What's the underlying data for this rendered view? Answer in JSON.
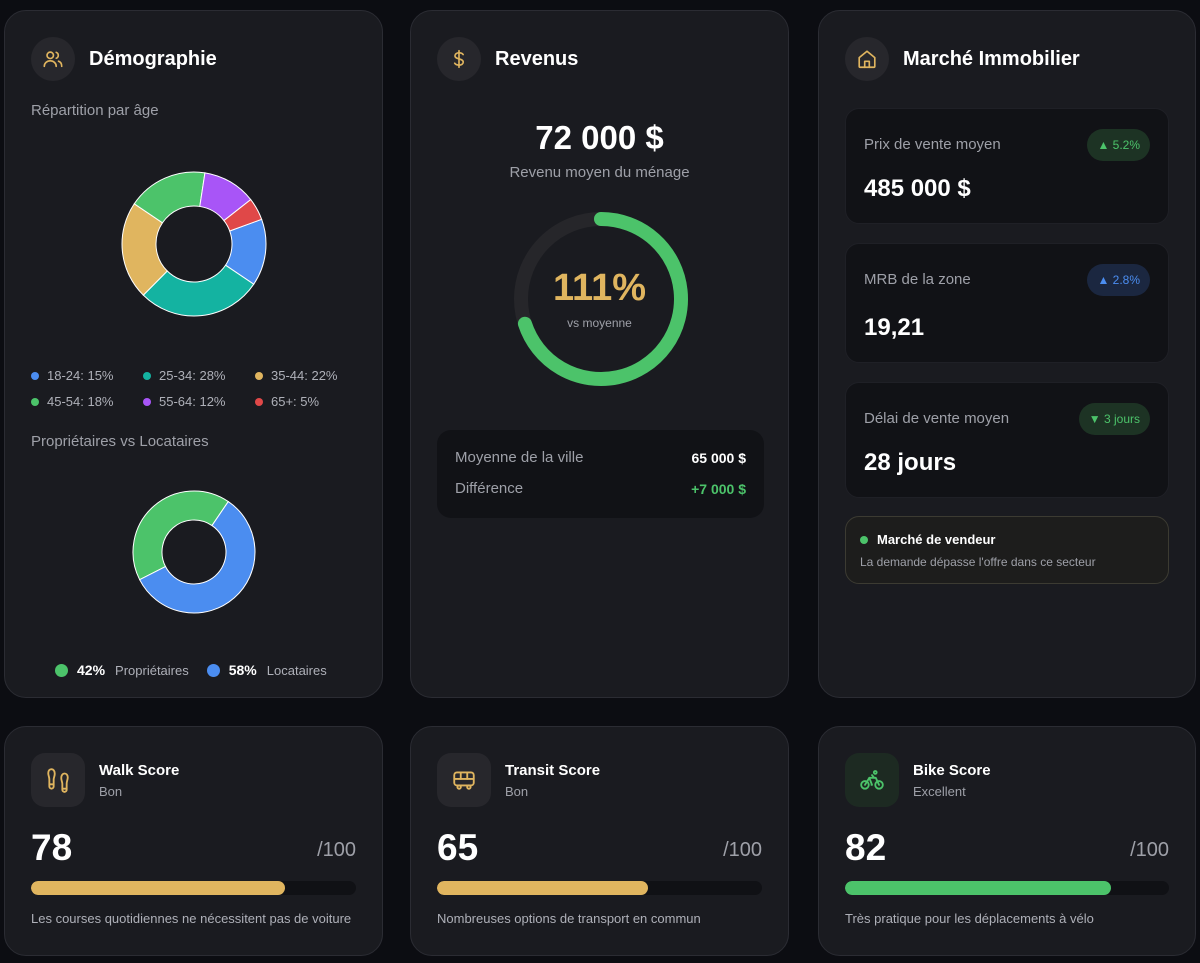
{
  "colors": {
    "blue": "#4b8df0",
    "teal": "#14b3a1",
    "gold": "#e0b55f",
    "green": "#4cc36a",
    "purple": "#a855f7",
    "red": "#e04848",
    "track": "#26262a"
  },
  "demographics": {
    "title": "Démographie",
    "icon": "users-icon",
    "age_label": "Répartition par âge",
    "ownership_label": "Propriétaires vs Locataires"
  },
  "chart_data": [
    {
      "type": "pie",
      "variant": "donut",
      "categories": [
        "18-24",
        "25-34",
        "35-44",
        "45-54",
        "55-64",
        "65+"
      ],
      "values": [
        15,
        28,
        22,
        18,
        12,
        5
      ],
      "legend_labels": [
        "18-24: 15%",
        "25-34: 28%",
        "35-44: 22%",
        "45-54: 18%",
        "55-64: 12%",
        "65+: 5%"
      ],
      "colors": [
        "#4b8df0",
        "#14b3a1",
        "#e0b55f",
        "#4cc36a",
        "#a855f7",
        "#e04848"
      ],
      "legend_placement": "bottom"
    },
    {
      "type": "pie",
      "variant": "donut",
      "categories": [
        "Propriétaires",
        "Locataires"
      ],
      "values": [
        42,
        58
      ],
      "percent_labels": [
        "42%",
        "58%"
      ],
      "colors": [
        "#4cc36a",
        "#4b8df0"
      ],
      "legend_placement": "bottom"
    }
  ],
  "revenue": {
    "title": "Revenus",
    "icon": "dollar-icon",
    "amount": "72 000 $",
    "amount_label": "Revenu moyen du ménage",
    "gauge_value": 111,
    "gauge_label": "111%",
    "gauge_sub": "vs moyenne",
    "city_avg_label": "Moyenne de la ville",
    "city_avg_value": "65 000 $",
    "diff_label": "Différence",
    "diff_value": "+7 000 $"
  },
  "market": {
    "title": "Marché Immobilier",
    "icon": "home-icon",
    "stats": [
      {
        "label": "Prix de vente moyen",
        "value": "485 000 $",
        "badge": "▲ 5.2%",
        "badge_color": "green"
      },
      {
        "label": "MRB de la zone",
        "value": "19,21",
        "badge": "▲ 2.8%",
        "badge_color": "blue"
      },
      {
        "label": "Délai de vente moyen",
        "value": "28 jours",
        "badge": "▼ 3 jours",
        "badge_color": "green"
      }
    ],
    "seller_title": "Marché de vendeur",
    "seller_desc": "La demande dépasse l'offre dans ce secteur"
  },
  "scores": [
    {
      "title": "Walk Score",
      "level": "Bon",
      "value": "78",
      "max": "/100",
      "fraction": 0.78,
      "color": "#e0b55f",
      "icon": "footprints-icon",
      "desc": "Les courses quotidiennes ne nécessitent pas de voiture"
    },
    {
      "title": "Transit Score",
      "level": "Bon",
      "value": "65",
      "max": "/100",
      "fraction": 0.65,
      "color": "#e0b55f",
      "icon": "bus-icon",
      "desc": "Nombreuses options de transport en commun"
    },
    {
      "title": "Bike Score",
      "level": "Excellent",
      "value": "82",
      "max": "/100",
      "fraction": 0.82,
      "color": "#4cc36a",
      "icon": "bike-icon",
      "desc": "Très pratique pour les déplacements à vélo"
    }
  ]
}
